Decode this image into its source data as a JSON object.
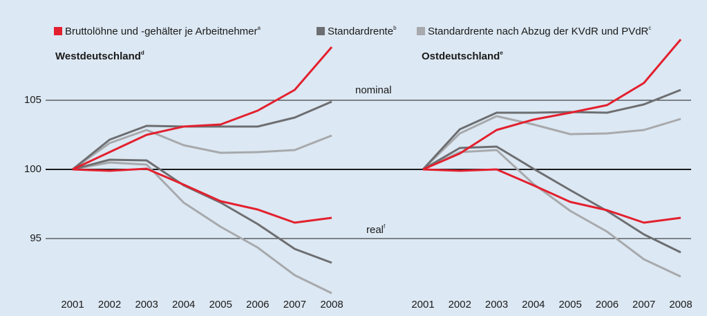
{
  "chart_data": {
    "type": "line",
    "legend": [
      {
        "name": "Bruttolöhne und -gehälter je Arbeitnehmer",
        "sup": "a",
        "color": "#e3202e"
      },
      {
        "name": "Standardrente",
        "sup": "b",
        "color": "#6d6e71"
      },
      {
        "name": "Standardrente nach Abzug der KVdR und PVdR",
        "sup": "c",
        "color": "#a7a9ac"
      }
    ],
    "ylim": [
      90.75,
      109.5
    ],
    "yticks": [
      95,
      100,
      105
    ],
    "annotations": {
      "nominal": "nominal",
      "real": "real",
      "real_sup": "f"
    },
    "panels": [
      {
        "title": "Westdeutschland",
        "title_sup": "d",
        "categories": [
          "2001",
          "2002",
          "2003",
          "2004",
          "2005",
          "2006",
          "2007",
          "2008"
        ],
        "series": [
          {
            "values": [
              100,
              101.25,
              102.5,
              103.1,
              103.25,
              104.25,
              105.75,
              108.85
            ],
            "real": [
              100,
              99.9,
              100.05,
              98.9,
              97.7,
              97.1,
              96.15,
              96.5
            ]
          },
          {
            "values": [
              100,
              102.15,
              103.15,
              103.1,
              103.1,
              103.1,
              103.75,
              104.9
            ],
            "real": [
              100,
              100.7,
              100.65,
              98.85,
              97.6,
              96.05,
              94.25,
              93.25
            ]
          },
          {
            "values": [
              100,
              101.9,
              102.85,
              101.75,
              101.2,
              101.25,
              101.4,
              102.45
            ],
            "real": [
              100,
              100.5,
              100.35,
              97.6,
              95.85,
              94.35,
              92.35,
              91.05
            ]
          }
        ]
      },
      {
        "title": "Ostdeutschland",
        "title_sup": "e",
        "categories": [
          "2001",
          "2002",
          "2003",
          "2004",
          "2005",
          "2006",
          "2007",
          "2008"
        ],
        "series": [
          {
            "values": [
              100,
              101.15,
              102.85,
              103.6,
              104.1,
              104.65,
              106.25,
              109.4
            ],
            "real": [
              100,
              99.9,
              100,
              98.85,
              97.65,
              97.05,
              96.15,
              96.5
            ]
          },
          {
            "values": [
              100,
              102.9,
              104.1,
              104.1,
              104.15,
              104.1,
              104.7,
              105.75
            ],
            "real": [
              100,
              101.55,
              101.65,
              100.05,
              98.5,
              97,
              95.3,
              94
            ]
          },
          {
            "values": [
              100,
              102.6,
              103.85,
              103.25,
              102.55,
              102.6,
              102.85,
              103.65
            ],
            "real": [
              100,
              101.25,
              101.4,
              98.95,
              97,
              95.5,
              93.5,
              92.25
            ]
          }
        ]
      }
    ]
  }
}
